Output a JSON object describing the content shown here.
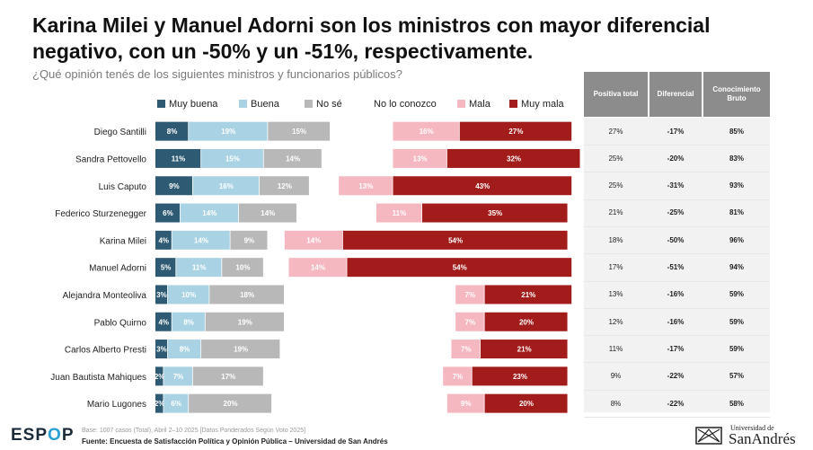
{
  "title": "Karina Milei y Manuel Adorni son los ministros con mayor diferencial negativo, con un -50% y un -51%, respectivamente.",
  "subtitle": "¿Qué opinión tenés de los siguientes ministros y funcionarios públicos?",
  "legend": [
    {
      "label": "Muy buena",
      "color": "#2e5b73"
    },
    {
      "label": "Buena",
      "color": "#a9d3e4"
    },
    {
      "label": "No sé",
      "color": "#b8b8b8"
    },
    {
      "label": "No lo conozco",
      "color": "#ffffff"
    },
    {
      "label": "Mala",
      "color": "#f6b8c0"
    },
    {
      "label": "Muy mala",
      "color": "#a31c1c"
    }
  ],
  "table": {
    "headers": [
      "Positiva total",
      "Diferencial",
      "Conocimiento Bruto"
    ],
    "rows": [
      [
        "27%",
        "-17%",
        "85%"
      ],
      [
        "25%",
        "-20%",
        "83%"
      ],
      [
        "25%",
        "-31%",
        "93%"
      ],
      [
        "21%",
        "-25%",
        "81%"
      ],
      [
        "18%",
        "-50%",
        "96%"
      ],
      [
        "17%",
        "-51%",
        "94%"
      ],
      [
        "13%",
        "-16%",
        "59%"
      ],
      [
        "12%",
        "-16%",
        "59%"
      ],
      [
        "11%",
        "-17%",
        "59%"
      ],
      [
        "9%",
        "-22%",
        "57%"
      ],
      [
        "8%",
        "-22%",
        "58%"
      ]
    ]
  },
  "chart_data": {
    "type": "bar",
    "stacked": true,
    "categories": [
      "Diego Santilli",
      "Sandra Pettovello",
      "Luis Caputo",
      "Federico Sturzenegger",
      "Karina Milei",
      "Manuel Adorni",
      "Alejandra Monteoliva",
      "Pablo Quirno",
      "Carlos Alberto Presti",
      "Juan Bautista Mahiques",
      "Mario Lugones"
    ],
    "series": [
      {
        "name": "Muy buena",
        "values": [
          8,
          11,
          9,
          6,
          4,
          5,
          3,
          4,
          3,
          2,
          2
        ]
      },
      {
        "name": "Buena",
        "values": [
          19,
          15,
          16,
          14,
          14,
          11,
          10,
          8,
          8,
          7,
          6
        ]
      },
      {
        "name": "No sé",
        "values": [
          15,
          14,
          12,
          14,
          9,
          10,
          18,
          19,
          19,
          17,
          20
        ]
      },
      {
        "name": "No lo conozco",
        "values": [
          15,
          17,
          7,
          19,
          4,
          6,
          41,
          41,
          41,
          43,
          42
        ]
      },
      {
        "name": "Mala",
        "values": [
          16,
          13,
          13,
          11,
          14,
          14,
          7,
          7,
          7,
          7,
          9
        ]
      },
      {
        "name": "Muy mala",
        "values": [
          27,
          32,
          43,
          35,
          54,
          54,
          21,
          20,
          21,
          23,
          20
        ]
      }
    ],
    "label_suffix": "%",
    "hidden_label_series": [
      "No lo conozco"
    ],
    "xlim": [
      0,
      100
    ]
  },
  "footer": {
    "logo_main": "ESP",
    "logo_o": "O",
    "logo_end": "P",
    "base": "Base: 1007 casos (Total), Abril 2–10 2025 [Datos Ponderados Según Voto 2025]",
    "source": "Fuente: Encuesta de Satisfacción Política y Opinión Pública – Universidad de San Andrés",
    "university_small": "Universidad de",
    "university_large": "SanAndrés"
  }
}
